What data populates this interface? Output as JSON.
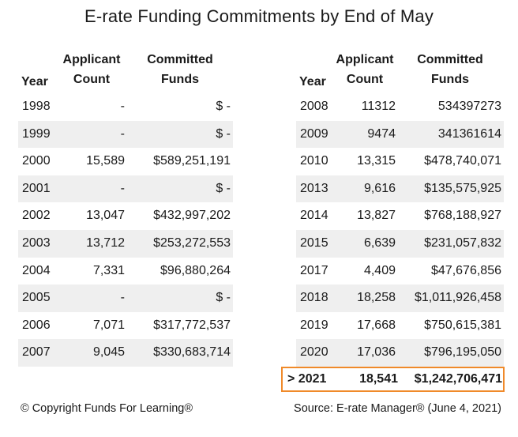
{
  "title": "E-rate Funding Commitments by End of May",
  "headers": {
    "year": "Year",
    "applicant_l1": "Applicant",
    "applicant_l2": "Count",
    "committed_l1": "Committed",
    "committed_l2": "Funds"
  },
  "left_rows": [
    {
      "year": "1998",
      "count": "-",
      "funds": "$ -"
    },
    {
      "year": "1999",
      "count": "-",
      "funds": "$ -"
    },
    {
      "year": "2000",
      "count": "15,589",
      "funds": "$589,251,191"
    },
    {
      "year": "2001",
      "count": "-",
      "funds": "$ -"
    },
    {
      "year": "2002",
      "count": "13,047",
      "funds": "$432,997,202"
    },
    {
      "year": "2003",
      "count": "13,712",
      "funds": "$253,272,553"
    },
    {
      "year": "2004",
      "count": "7,331",
      "funds": "$96,880,264"
    },
    {
      "year": "2005",
      "count": "-",
      "funds": "$ -"
    },
    {
      "year": "2006",
      "count": "7,071",
      "funds": "$317,772,537"
    },
    {
      "year": "2007",
      "count": "9,045",
      "funds": "$330,683,714"
    }
  ],
  "right_rows": [
    {
      "year": "2008",
      "count": "11312",
      "funds": "534397273"
    },
    {
      "year": "2009",
      "count": "9474",
      "funds": "341361614"
    },
    {
      "year": "2010",
      "count": "13,315",
      "funds": "$478,740,071"
    },
    {
      "year": "2013",
      "count": "9,616",
      "funds": "$135,575,925"
    },
    {
      "year": "2014",
      "count": "13,827",
      "funds": "$768,188,927"
    },
    {
      "year": "2015",
      "count": "6,639",
      "funds": "$231,057,832"
    },
    {
      "year": "2017",
      "count": "4,409",
      "funds": "$47,676,856"
    },
    {
      "year": "2018",
      "count": "18,258",
      "funds": "$1,011,926,458"
    },
    {
      "year": "2019",
      "count": "17,668",
      "funds": "$750,615,381"
    },
    {
      "year": "2020",
      "count": "17,036",
      "funds": "$796,195,050"
    }
  ],
  "highlight_row": {
    "year": "> 2021",
    "count": "18,541",
    "funds": "$1,242,706,471"
  },
  "colors": {
    "highlight_border": "#f08a2a",
    "row_shade": "#efefef"
  },
  "footer": {
    "copyright": "© Copyright Funds For Learning®",
    "source": "Source: E-rate Manager® (June 4, 2021)"
  }
}
